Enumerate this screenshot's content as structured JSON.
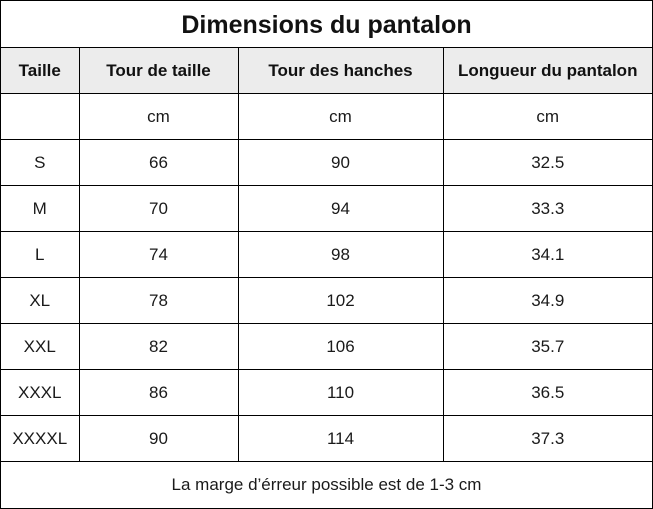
{
  "title": "Dimensions du pantalon",
  "headers": [
    "Taille",
    "Tour de taille",
    "Tour des hanches",
    "Longueur du pantalon"
  ],
  "units": [
    "",
    "cm",
    "cm",
    "cm"
  ],
  "rows": [
    [
      "S",
      "66",
      "90",
      "32.5"
    ],
    [
      "M",
      "70",
      "94",
      "33.3"
    ],
    [
      "L",
      "74",
      "98",
      "34.1"
    ],
    [
      "XL",
      "78",
      "102",
      "34.9"
    ],
    [
      "XXL",
      "82",
      "106",
      "35.7"
    ],
    [
      "XXXL",
      "86",
      "110",
      "36.5"
    ],
    [
      "XXXXL",
      "90",
      "114",
      "37.3"
    ]
  ],
  "footnote": "La marge d’érreur possible est de 1-3 cm"
}
